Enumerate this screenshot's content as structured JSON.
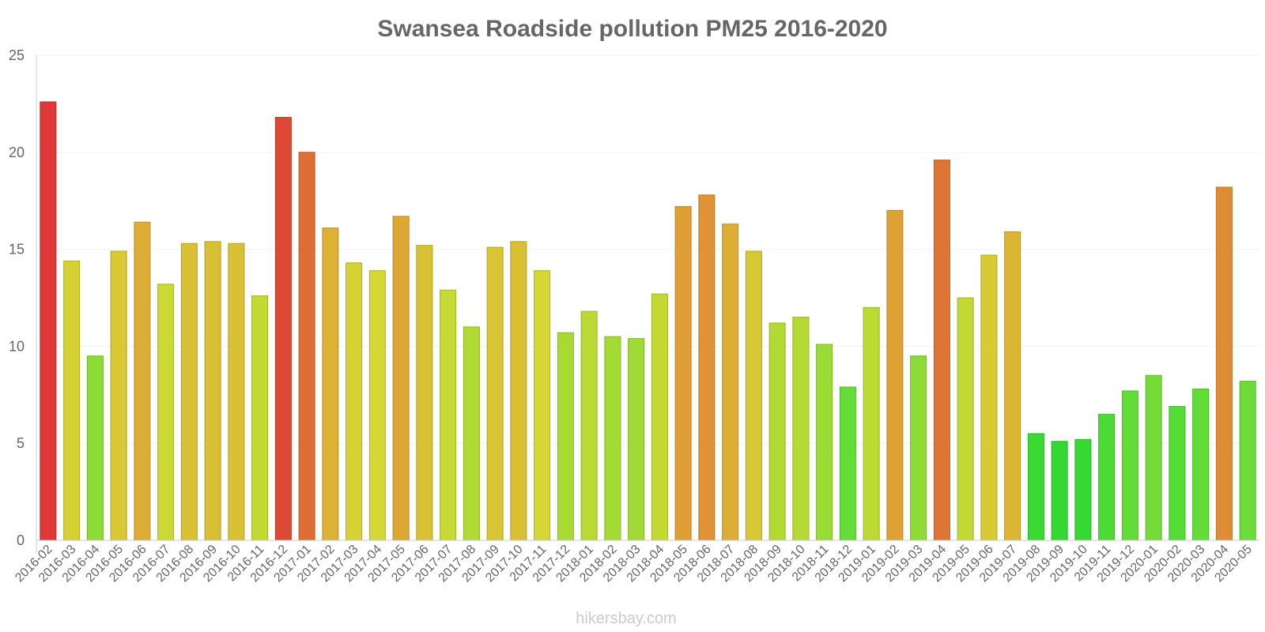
{
  "chart_data": {
    "type": "bar",
    "title": "Swansea Roadside pollution PM25 2016-2020",
    "xlabel": "",
    "ylabel": "",
    "ylim": [
      0,
      25
    ],
    "yticks": [
      0,
      5,
      10,
      15,
      20,
      25
    ],
    "grid": true,
    "credit": "hikersbay.com",
    "categories": [
      "2016-02",
      "2016-03",
      "2016-04",
      "2016-05",
      "2016-06",
      "2016-07",
      "2016-08",
      "2016-09",
      "2016-10",
      "2016-11",
      "2016-12",
      "2017-01",
      "2017-02",
      "2017-03",
      "2017-04",
      "2017-05",
      "2017-06",
      "2017-07",
      "2017-08",
      "2017-09",
      "2017-10",
      "2017-11",
      "2017-12",
      "2018-01",
      "2018-02",
      "2018-03",
      "2018-04",
      "2018-05",
      "2018-06",
      "2018-07",
      "2018-08",
      "2018-09",
      "2018-10",
      "2018-11",
      "2018-12",
      "2019-01",
      "2019-02",
      "2019-03",
      "2019-04",
      "2019-05",
      "2019-06",
      "2019-07",
      "2019-08",
      "2019-09",
      "2019-10",
      "2019-11",
      "2019-12",
      "2020-01",
      "2020-02",
      "2020-03",
      "2020-04",
      "2020-05"
    ],
    "values": [
      22.6,
      14.4,
      9.5,
      14.9,
      16.4,
      13.2,
      15.3,
      15.4,
      15.3,
      12.6,
      21.8,
      20.0,
      16.1,
      14.3,
      13.9,
      16.7,
      15.2,
      12.9,
      11.0,
      15.1,
      15.4,
      13.9,
      10.7,
      11.8,
      10.5,
      10.4,
      12.7,
      17.2,
      17.8,
      16.3,
      14.9,
      11.2,
      11.5,
      10.1,
      7.9,
      12.0,
      17.0,
      9.5,
      19.6,
      12.5,
      14.7,
      15.9,
      5.5,
      5.1,
      5.2,
      6.5,
      7.7,
      8.5,
      6.9,
      7.8,
      18.2,
      8.2
    ],
    "colors": {
      "axis": "#cccccc",
      "grid": "#f2f2f2",
      "text": "#666666"
    }
  }
}
